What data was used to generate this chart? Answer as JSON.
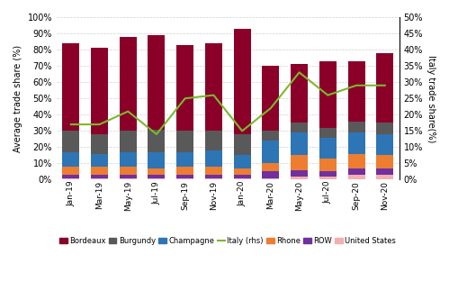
{
  "months": [
    "Jan-19",
    "Mar-19",
    "May-19",
    "Jul-19",
    "Sep-19",
    "Nov-19",
    "Jan-20",
    "Mar-20",
    "May-20",
    "Jul-20",
    "Sep-20",
    "Nov-20"
  ],
  "bordeaux": [
    54,
    53,
    58,
    58,
    53,
    54,
    65,
    40,
    36,
    41,
    37,
    43
  ],
  "burgundy": [
    13,
    12,
    13,
    14,
    13,
    12,
    13,
    6,
    6,
    6,
    7,
    7
  ],
  "champagne": [
    9,
    8,
    9,
    10,
    9,
    10,
    8,
    14,
    14,
    13,
    13,
    13
  ],
  "rhone": [
    5,
    5,
    5,
    4,
    5,
    5,
    4,
    5,
    9,
    8,
    9,
    8
  ],
  "row": [
    2,
    2,
    2,
    2,
    2,
    2,
    2,
    4,
    4,
    3,
    4,
    4
  ],
  "united_states": [
    1,
    1,
    1,
    1,
    1,
    1,
    1,
    1,
    2,
    2,
    3,
    3
  ],
  "italy_rhs": [
    17,
    17,
    21,
    14,
    25,
    26,
    15,
    22,
    33,
    26,
    29,
    29
  ],
  "colors": {
    "bordeaux": "#8B0029",
    "burgundy": "#595959",
    "champagne": "#2E75B6",
    "rhone": "#ED7D31",
    "row": "#7030A0",
    "united_states": "#F4AFAF",
    "italy": "#7CB82F"
  },
  "ylabel_left": "Average trade share (%)",
  "ylabel_right": "Italy trade share(%)",
  "ylim_left": [
    0,
    100
  ],
  "ylim_right": [
    0,
    50
  ]
}
